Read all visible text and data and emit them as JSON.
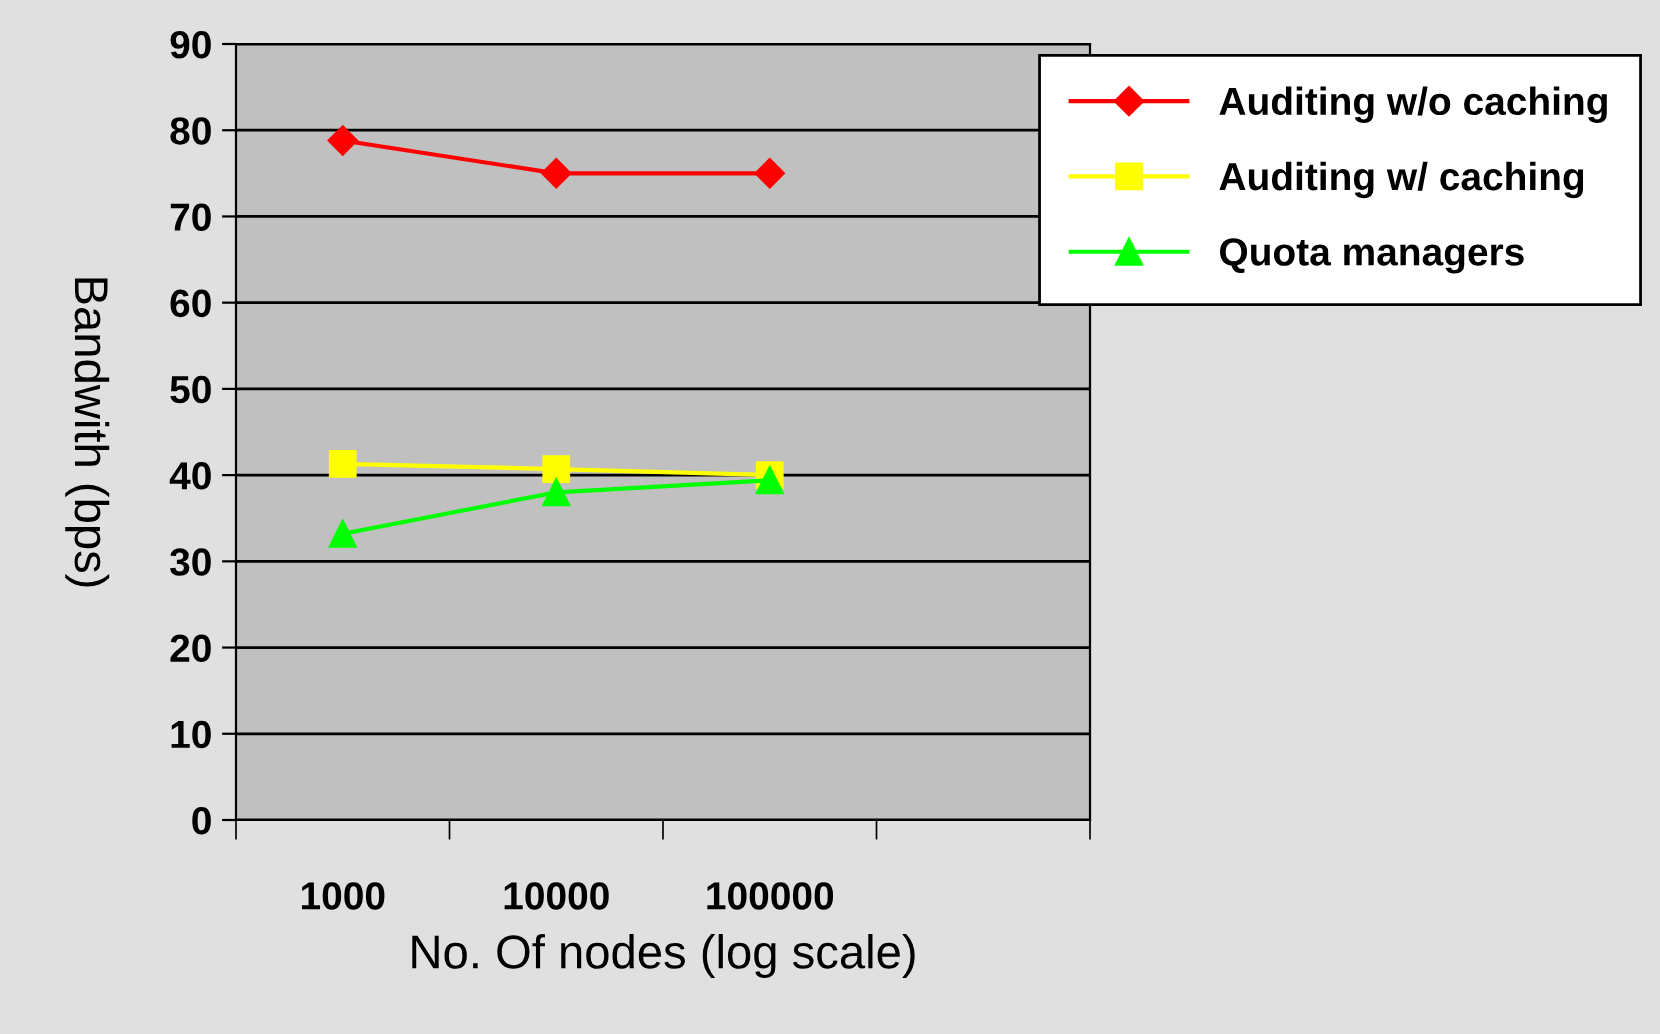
{
  "chart_data": {
    "type": "line",
    "xlabel": "No. Of nodes (log scale)",
    "ylabel": "Bandwith (bps)",
    "categories": [
      "1000",
      "10000",
      "100000",
      null
    ],
    "series": [
      {
        "name": "Auditing w/o caching",
        "color": "#ff0000",
        "marker": "diamond",
        "values": [
          78.8,
          75,
          75,
          null
        ]
      },
      {
        "name": "Auditing w/ caching",
        "color": "#ffff00",
        "marker": "square",
        "values": [
          41.3,
          40.7,
          40,
          null
        ]
      },
      {
        "name": "Quota managers",
        "color": "#00ff00",
        "marker": "triangle",
        "values": [
          33.2,
          38,
          39.4,
          null
        ]
      }
    ],
    "ylim": [
      0,
      90
    ],
    "yticks": [
      0,
      10,
      20,
      30,
      40,
      50,
      60,
      70,
      80,
      90
    ],
    "grid": "y",
    "legend": "top right"
  }
}
